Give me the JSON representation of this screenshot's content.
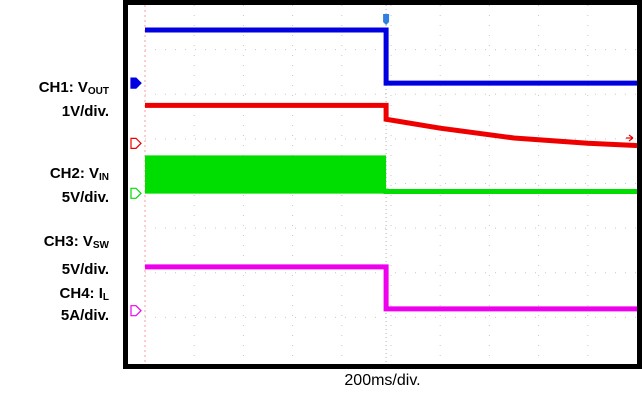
{
  "chart_data": {
    "type": "line",
    "title": "",
    "xlabel": "200ms/div.",
    "grid": true,
    "time_per_div_ms": 200,
    "event_time_div": 4.9,
    "total_divs": 10,
    "channels": [
      {
        "id": 1,
        "prefix": "CH1: ",
        "sym": "V",
        "sub": "OUT",
        "scale": "1V/div.",
        "color": "#0000e0",
        "series": {
          "x_div": [
            0,
            4.9,
            4.9,
            10
          ],
          "y_div": [
            7.44,
            7.44,
            6.25,
            6.25
          ]
        }
      },
      {
        "id": 2,
        "prefix": "CH2: ",
        "sym": "V",
        "sub": "IN",
        "scale": "5V/div.",
        "color": "#ee0000",
        "series": {
          "x_div": [
            0,
            4.9,
            4.9,
            6,
            7.5,
            9,
            10
          ],
          "y_div": [
            5.75,
            5.75,
            5.44,
            5.24,
            5.02,
            4.9,
            4.85
          ]
        }
      },
      {
        "id": 3,
        "prefix": "CH3: ",
        "sym": "V",
        "sub": "SW",
        "scale": "5V/div.",
        "color": "#00dd00",
        "switching_band_div": [
          3.83,
          4.63
        ],
        "series": {
          "x_div": [
            0,
            4.9,
            4.9,
            10
          ],
          "y_div": [
            3.83,
            3.83,
            3.82,
            3.82
          ]
        }
      },
      {
        "id": 4,
        "prefix": "CH4: ",
        "sym": "I",
        "sub": "L",
        "scale": "5A/div.",
        "color": "#ee00ee",
        "series": {
          "x_div": [
            0,
            4.9,
            4.9,
            10
          ],
          "y_div": [
            2.13,
            2.13,
            1.19,
            1.19
          ]
        }
      }
    ]
  }
}
